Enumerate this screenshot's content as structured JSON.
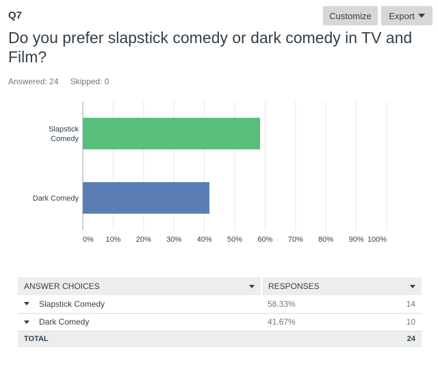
{
  "question": {
    "number": "Q7",
    "title": "Do you prefer slapstick comedy or dark comedy in TV and Film?",
    "answered_label": "Answered: 24",
    "skipped_label": "Skipped: 0"
  },
  "toolbar": {
    "customize_label": "Customize",
    "export_label": "Export"
  },
  "colors": {
    "slapstick": "#58bf7b",
    "dark": "#5b7db5",
    "grid": "#e3e6e8",
    "axis": "#9aa4aa"
  },
  "chart_data": {
    "type": "bar",
    "orientation": "horizontal",
    "categories": [
      "Slapstick Comedy",
      "Dark Comedy"
    ],
    "category_label_lines": [
      [
        "Slapstick",
        "Comedy"
      ],
      [
        "Dark Comedy"
      ]
    ],
    "values": [
      58.33,
      41.67
    ],
    "xlim": [
      0,
      100
    ],
    "ticks": [
      0,
      10,
      20,
      30,
      40,
      50,
      60,
      70,
      80,
      90,
      100
    ],
    "tick_labels": [
      "0%",
      "10%",
      "20%",
      "30%",
      "40%",
      "50%",
      "60%",
      "70%",
      "80%",
      "90%",
      "100%"
    ],
    "grid": true
  },
  "table": {
    "headers": {
      "choices": "ANSWER CHOICES",
      "responses": "RESPONSES"
    },
    "rows": [
      {
        "choice": "Slapstick Comedy",
        "percent": "58.33%",
        "count": "14"
      },
      {
        "choice": "Dark Comedy",
        "percent": "41.67%",
        "count": "10"
      }
    ],
    "total_label": "TOTAL",
    "total_count": "24"
  }
}
